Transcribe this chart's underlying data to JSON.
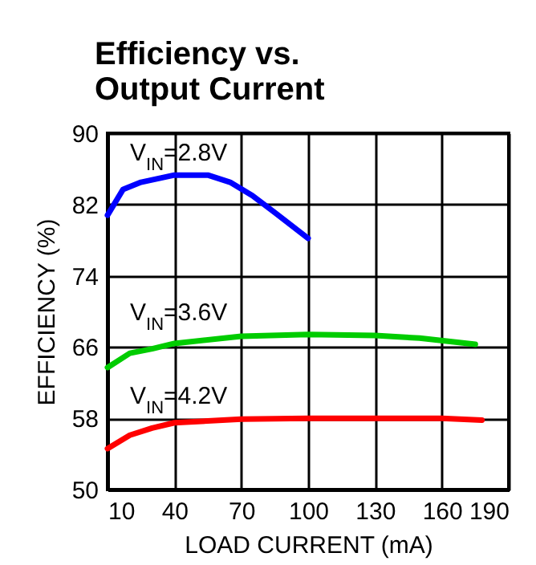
{
  "chart_data": {
    "type": "line",
    "title": "Efficiency vs.\nOutput Current",
    "xlabel": "LOAD CURRENT (mA)",
    "ylabel": "EFFICIENCY (%)",
    "xlim": [
      10,
      190
    ],
    "xticks": [
      10,
      40,
      70,
      100,
      130,
      160,
      190
    ],
    "ylim": [
      50,
      90
    ],
    "yticks": [
      50,
      58,
      66,
      74,
      82,
      90
    ],
    "grid": true,
    "legend": false,
    "marker": "none",
    "line_style": "solid",
    "series": [
      {
        "name": "V$_{IN}$=2.8V",
        "color": "#0000ff",
        "x": [
          10,
          17,
          25,
          40,
          55,
          65,
          75,
          85,
          100
        ],
        "values": [
          80.8,
          83.7,
          84.5,
          85.3,
          85.3,
          84.5,
          83.0,
          81.1,
          78.2
        ]
      },
      {
        "name": "V$_{IN}$=3.6V",
        "color": "#00cc00",
        "x": [
          10,
          20,
          30,
          40,
          70,
          100,
          130,
          150,
          175
        ],
        "values": [
          63.7,
          65.3,
          65.8,
          66.4,
          67.2,
          67.4,
          67.3,
          67.0,
          66.3
        ]
      },
      {
        "name": "V$_{IN}$=4.2V",
        "color": "#ff0000",
        "x": [
          10,
          20,
          30,
          40,
          70,
          100,
          160,
          178
        ],
        "values": [
          54.6,
          56.1,
          56.9,
          57.5,
          57.9,
          58.0,
          58.0,
          57.8
        ]
      }
    ]
  }
}
